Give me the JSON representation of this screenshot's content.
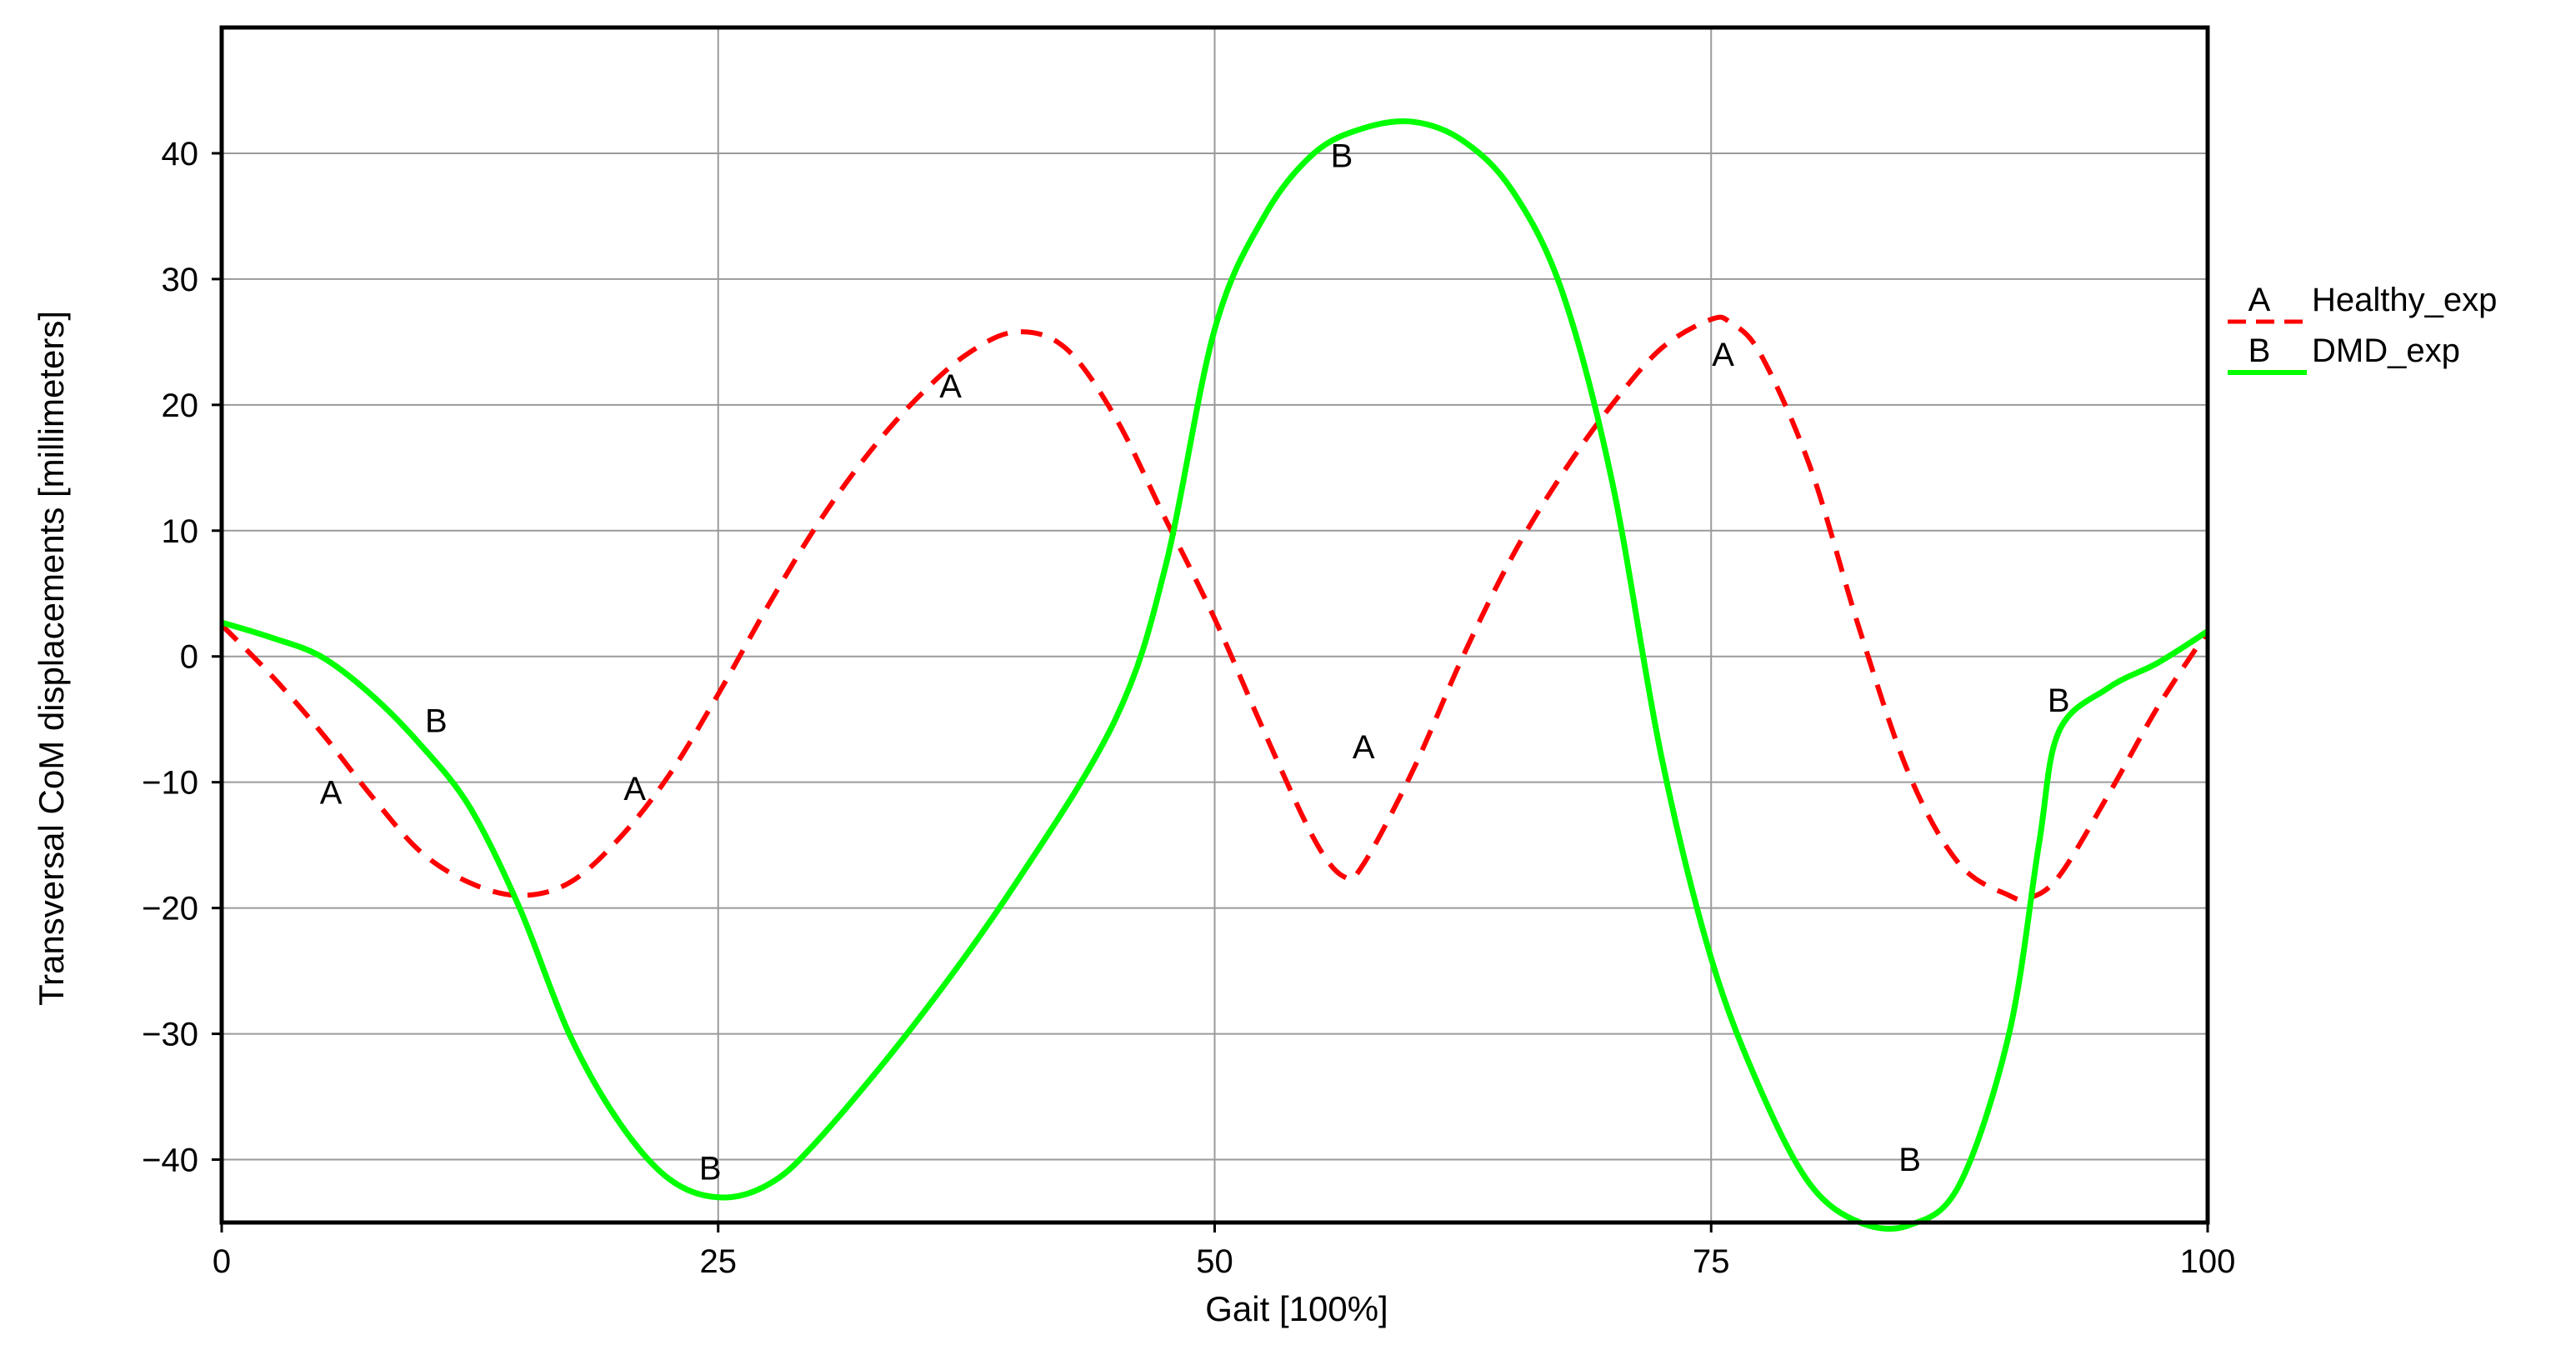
{
  "chart_data": {
    "type": "line",
    "xlabel": "Gait [100%]",
    "ylabel": "Transversal CoM displacements [millimeters]",
    "xlim": [
      0,
      100
    ],
    "ylim": [
      -45,
      50
    ],
    "xticks": [
      "0",
      "25",
      "50",
      "75",
      "100"
    ],
    "xtick_values": [
      0,
      25,
      50,
      75,
      100
    ],
    "yticks": [
      "40",
      "30",
      "20",
      "10",
      "0",
      "−10",
      "−20",
      "−30",
      "−40"
    ],
    "ytick_values": [
      40,
      30,
      20,
      10,
      0,
      -10,
      -20,
      -30,
      -40
    ],
    "grid": true,
    "legend_position": "right",
    "series": [
      {
        "name": "Healthy_exp",
        "marker": "A",
        "color": "#ff0000",
        "style": "dashed",
        "x": [
          0,
          2.5,
          5,
          7.5,
          10,
          12.5,
          15,
          17.5,
          20,
          22.5,
          25,
          27.5,
          30,
          32.5,
          35,
          37.5,
          40,
          42.5,
          45,
          47.5,
          50,
          52.5,
          55,
          56.5,
          57.5,
          60,
          62.5,
          65,
          67.5,
          70,
          72.5,
          75,
          76,
          77.5,
          80,
          82.5,
          85,
          87.5,
          90,
          91,
          92.5,
          95,
          97.5,
          100
        ],
        "y": [
          2.5,
          -1.5,
          -6,
          -11,
          -15.5,
          -18,
          -19,
          -18,
          -14.5,
          -9.5,
          -3,
          4,
          10.5,
          16,
          20.5,
          24,
          25.8,
          24.5,
          19,
          11,
          3,
          -6,
          -14.5,
          -17.5,
          -16.5,
          -9,
          0,
          8,
          14.5,
          20,
          24.5,
          26.8,
          26.5,
          24,
          15,
          2,
          -9.5,
          -16.5,
          -19,
          -19.2,
          -17.5,
          -11,
          -4,
          2
        ],
        "point_labels": [
          {
            "x": 5.5,
            "y": -11,
            "text": "A"
          },
          {
            "x": 20.8,
            "y": -10.7,
            "text": "A"
          },
          {
            "x": 36.7,
            "y": 21.3,
            "text": "A"
          },
          {
            "x": 57.5,
            "y": -7.4,
            "text": "A"
          },
          {
            "x": 75.6,
            "y": 23.8,
            "text": "A"
          }
        ]
      },
      {
        "name": "DMD_exp",
        "marker": "B",
        "color": "#00ff00",
        "style": "solid",
        "x": [
          0,
          2.5,
          5,
          7.5,
          10,
          12.5,
          15,
          17.5,
          20,
          22.5,
          25,
          27.5,
          30,
          35,
          40,
          45,
          47.5,
          50,
          52.5,
          55,
          57.5,
          60,
          62.5,
          65,
          67.5,
          70,
          72.5,
          75,
          77.5,
          80,
          82.5,
          85,
          87.5,
          90,
          91.5,
          92.5,
          95,
          97.5,
          100
        ],
        "y": [
          2.7,
          1.5,
          0,
          -3,
          -7,
          -12,
          -20,
          -30,
          -37,
          -41.5,
          -43,
          -42,
          -38.5,
          -29,
          -18,
          -5,
          7,
          26,
          35,
          40,
          42,
          42.5,
          41,
          37,
          29,
          14,
          -8,
          -24,
          -34.5,
          -42,
          -45,
          -45.2,
          -42,
          -30,
          -15,
          -6,
          -2.5,
          -0.5,
          2
        ],
        "point_labels": [
          {
            "x": 10.8,
            "y": -5.3,
            "text": "B"
          },
          {
            "x": 24.6,
            "y": -40.9,
            "text": "B"
          },
          {
            "x": 56.4,
            "y": 39.6,
            "text": "B"
          },
          {
            "x": 85,
            "y": -40.2,
            "text": "B"
          },
          {
            "x": 92.5,
            "y": -3.7,
            "text": "B"
          }
        ]
      }
    ]
  }
}
